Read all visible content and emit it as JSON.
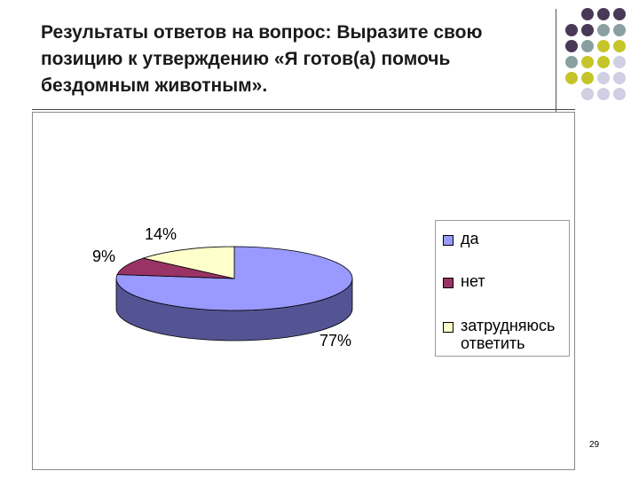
{
  "slide": {
    "title": "Результаты ответов на вопрос: Выразите свою позицию к утверждению «Я готов(а) помочь бездомным животным».",
    "page_number": "29"
  },
  "decoration": {
    "dot_colors": {
      "purple": "#4a3858",
      "teal": "#8aa0a0",
      "olive": "#c5c52a",
      "lavender": "#d0cfe3"
    }
  },
  "chart_data": {
    "type": "pie",
    "style": "3d",
    "title": "",
    "slices": [
      {
        "label": "да",
        "value": 77,
        "value_label": "77%",
        "color": "#9999ff",
        "side_color": "#545495"
      },
      {
        "label": "нет",
        "value": 9,
        "value_label": "9%",
        "color": "#993366",
        "side_color": "#5a1e3c"
      },
      {
        "label": "затрудняюсь ответить",
        "value": 14,
        "value_label": "14%",
        "color": "#ffffcc",
        "side_color": "#9a9a7a"
      }
    ],
    "legend": {
      "position": "right",
      "entries": [
        "да",
        "нет",
        "затрудняюсь ответить"
      ]
    }
  }
}
